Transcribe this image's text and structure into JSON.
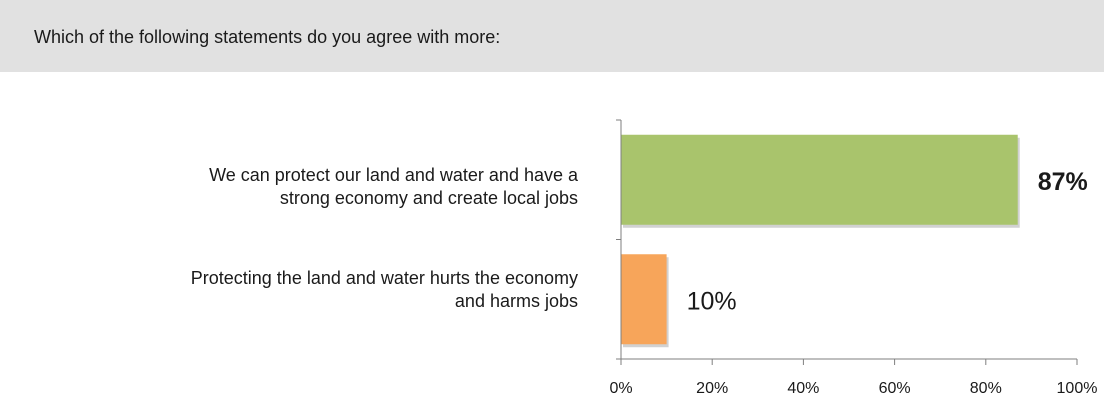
{
  "question": "Which of the following statements do you agree with more:",
  "chart_data": {
    "type": "bar",
    "orientation": "horizontal",
    "categories": [
      "We can protect our land and water and have a strong economy and create local jobs",
      "Protecting the land and water hurts the economy and harms jobs"
    ],
    "category_lines": [
      [
        "We can protect our land and water and have a",
        "strong economy and create local jobs"
      ],
      [
        "Protecting the land and water hurts the economy",
        "and harms jobs"
      ]
    ],
    "values": [
      87,
      10
    ],
    "value_labels": [
      "87%",
      "10%"
    ],
    "bar_colors": [
      "#a9c46c",
      "#f7a55a"
    ],
    "value_label_bold": [
      true,
      false
    ],
    "xlim": [
      0,
      100
    ],
    "xticks": [
      0,
      20,
      40,
      60,
      80,
      100
    ],
    "xtick_labels": [
      "0%",
      "20%",
      "40%",
      "60%",
      "80%",
      "100%"
    ],
    "grid": false,
    "legend": "none"
  }
}
